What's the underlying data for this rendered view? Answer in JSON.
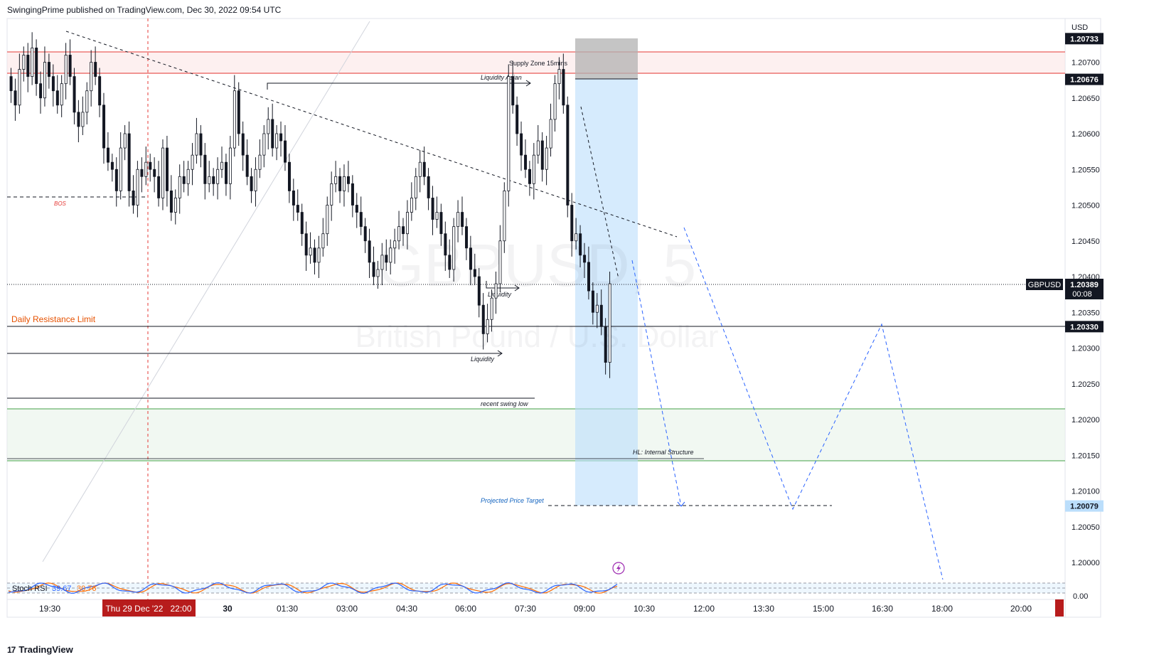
{
  "header": {
    "published": "SwingingPrime published on TradingView.com, Dec 30, 2022 09:54 UTC"
  },
  "footer": {
    "brand": "TradingView",
    "logo_icon": "tradingview-logo-icon"
  },
  "watermark": {
    "symbol": "GBPUSD, 5",
    "name": "British Pound / U.S. Dollar"
  },
  "price_axis": {
    "currency": "USD",
    "ticks": [
      "1.20700",
      "1.20650",
      "1.20600",
      "1.20550",
      "1.20500",
      "1.20450",
      "1.20400",
      "1.20350",
      "1.20300",
      "1.20250",
      "1.20200",
      "1.20150",
      "1.20100",
      "1.20050",
      "1.20000"
    ],
    "stoch_tick": "0.00"
  },
  "price_badges": [
    {
      "label": "1.20733",
      "price": 1.20733,
      "style": "dark"
    },
    {
      "label": "1.20676",
      "price": 1.20676,
      "style": "dark"
    },
    {
      "label": "1.20330",
      "price": 1.2033,
      "style": "dark"
    },
    {
      "label": "1.20079",
      "price": 1.20079,
      "style": "blue"
    }
  ],
  "current_price": {
    "symbol": "GBPUSD",
    "label": "1.20389",
    "countdown": "00:08",
    "price": 1.20389
  },
  "time_axis": {
    "ticks": [
      "19:30",
      "30",
      "01:30",
      "03:00",
      "04:30",
      "06:00",
      "07:30",
      "09:00",
      "10:30",
      "12:00",
      "13:30",
      "15:00",
      "16:30",
      "18:00",
      "20:00"
    ],
    "highlight": "Thu 29 Dec '22   22:00"
  },
  "annotations": {
    "bos": "BOS",
    "daily_resistance": "Daily Resistance Limit",
    "liquidity_asian": "Liquidity Asian",
    "supply_zone": "Supply Zone 15mins",
    "liquidity_1": "Liquidity",
    "liquidity_2": "Liquidity",
    "recent_swing_low": "recent swing low",
    "hl_internal": "HL: Internal Structure",
    "projected_target": "Projected Price Target"
  },
  "indicator": {
    "name": "Stoch RSI",
    "k": "39.67",
    "d": "30.76"
  },
  "colors": {
    "up": "#131722",
    "down": "#131722",
    "resistance_zone": "#e53935",
    "support_zone": "#43a047",
    "position_blue": "#bbdefb",
    "projection": "#2962ff",
    "stoch_k": "#2962ff",
    "stoch_d": "#ff6d00",
    "orange_label": "#e65100"
  },
  "chart_data": {
    "type": "candlestick",
    "symbol": "GBPUSD",
    "timeframe": "5",
    "ylim": [
      1.1997,
      1.2078
    ],
    "zones": {
      "supply": [
        1.20676,
        1.20733
      ],
      "demand": [
        1.20142,
        1.20216
      ]
    },
    "levels": {
      "daily_resistance": 1.2033,
      "liquidity_asian": 1.20668,
      "liquidity": 1.20293,
      "recent_swing_low": 1.20229,
      "bos": 1.2051,
      "projected_target": 1.20079
    },
    "closes": [
      1.2066,
      1.2064,
      1.2069,
      1.2071,
      1.2068,
      1.2072,
      1.2067,
      1.2065,
      1.207,
      1.2068,
      1.2066,
      1.2064,
      1.2067,
      1.2071,
      1.2068,
      1.2063,
      1.2061,
      1.2063,
      1.2066,
      1.207,
      1.2068,
      1.2064,
      1.2058,
      1.2056,
      1.2055,
      1.2052,
      1.2058,
      1.206,
      1.2052,
      1.205,
      1.2055,
      1.2054,
      1.2056,
      1.2055,
      1.2054,
      1.2051,
      1.2058,
      1.2052,
      1.2049,
      1.2051,
      1.2054,
      1.2053,
      1.2055,
      1.2057,
      1.206,
      1.2057,
      1.2053,
      1.2054,
      1.2053,
      1.2055,
      1.2056,
      1.2053,
      1.2058,
      1.2066,
      1.206,
      1.2057,
      1.2054,
      1.2052,
      1.2055,
      1.2057,
      1.206,
      1.2062,
      1.2058,
      1.206,
      1.2059,
      1.2056,
      1.2052,
      1.205,
      1.2049,
      1.2046,
      1.2043,
      1.2044,
      1.2042,
      1.2044,
      1.2046,
      1.205,
      1.2053,
      1.2054,
      1.2052,
      1.2054,
      1.2053,
      1.205,
      1.2049,
      1.2047,
      1.2045,
      1.2042,
      1.204,
      1.2041,
      1.2043,
      1.2042,
      1.2044,
      1.2045,
      1.2047,
      1.2046,
      1.2049,
      1.2051,
      1.2054,
      1.2056,
      1.2054,
      1.2051,
      1.2048,
      1.2049,
      1.2046,
      1.2043,
      1.2041,
      1.2047,
      1.2049,
      1.2047,
      1.2044,
      1.2041,
      1.204,
      1.2036,
      1.2032,
      1.2034,
      1.2037,
      1.2039,
      1.2045,
      1.2052,
      1.2068,
      1.2064,
      1.206,
      1.2057,
      1.2055,
      1.2053,
      1.2057,
      1.2059,
      1.2055,
      1.2058,
      1.2062,
      1.2067,
      1.2069,
      1.2064,
      1.205,
      1.2045,
      1.2046,
      1.2043,
      1.2042,
      1.2038,
      1.2035,
      1.2036,
      1.2033,
      1.2028,
      1.2039
    ]
  }
}
